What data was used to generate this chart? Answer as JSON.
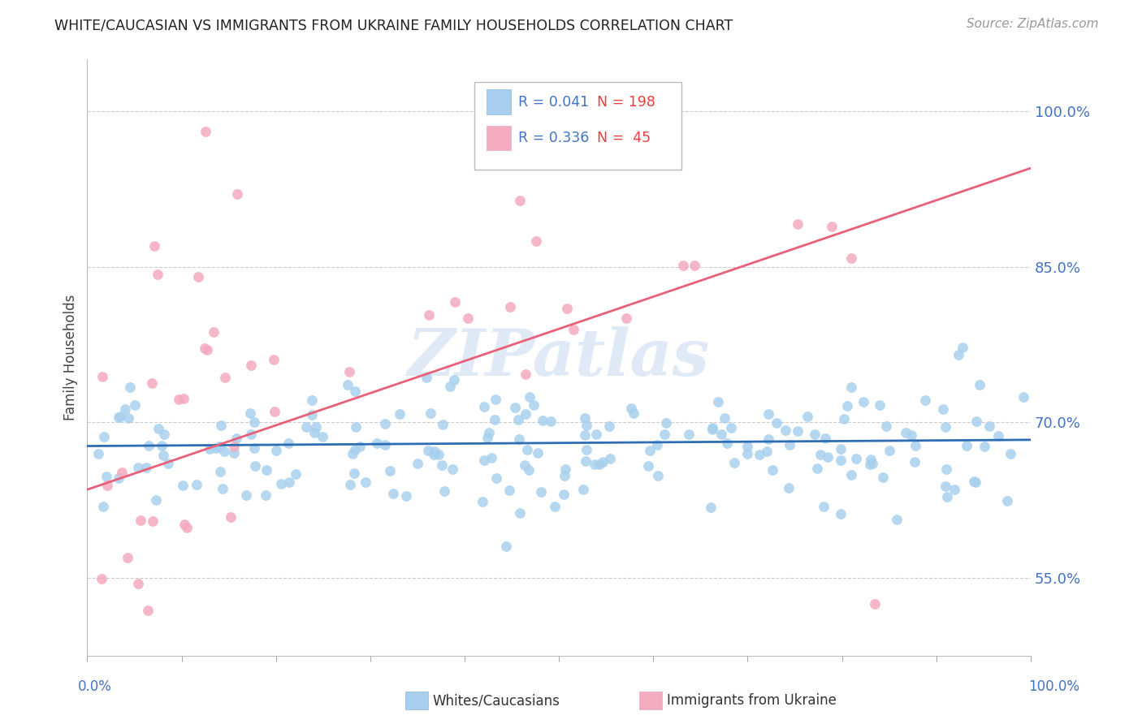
{
  "title": "WHITE/CAUCASIAN VS IMMIGRANTS FROM UKRAINE FAMILY HOUSEHOLDS CORRELATION CHART",
  "source": "Source: ZipAtlas.com",
  "ylabel": "Family Households",
  "xlim": [
    0.0,
    1.0
  ],
  "ylim": [
    0.475,
    1.05
  ],
  "ytick_positions": [
    0.55,
    0.7,
    0.85,
    1.0
  ],
  "ytick_labels": [
    "55.0%",
    "70.0%",
    "85.0%",
    "100.0%"
  ],
  "blue_color": "#A8D0EE",
  "pink_color": "#F4AABF",
  "blue_line_color": "#2E6DB4",
  "pink_line_color": "#E8607A",
  "watermark": "ZIPatlas",
  "legend1_R": "0.041",
  "legend1_N": "198",
  "legend2_R": "0.336",
  "legend2_N": "45",
  "blue_line_x": [
    0.0,
    1.0
  ],
  "blue_line_y": [
    0.677,
    0.683
  ],
  "pink_line_x": [
    0.0,
    1.0
  ],
  "pink_line_y": [
    0.635,
    0.945
  ],
  "grid_color": "#CCCCCC",
  "background_color": "#FFFFFF",
  "blue_R_color": "#4472C4",
  "blue_N_color": "#E84040",
  "pink_R_color": "#4472C4",
  "pink_N_color": "#E84040"
}
